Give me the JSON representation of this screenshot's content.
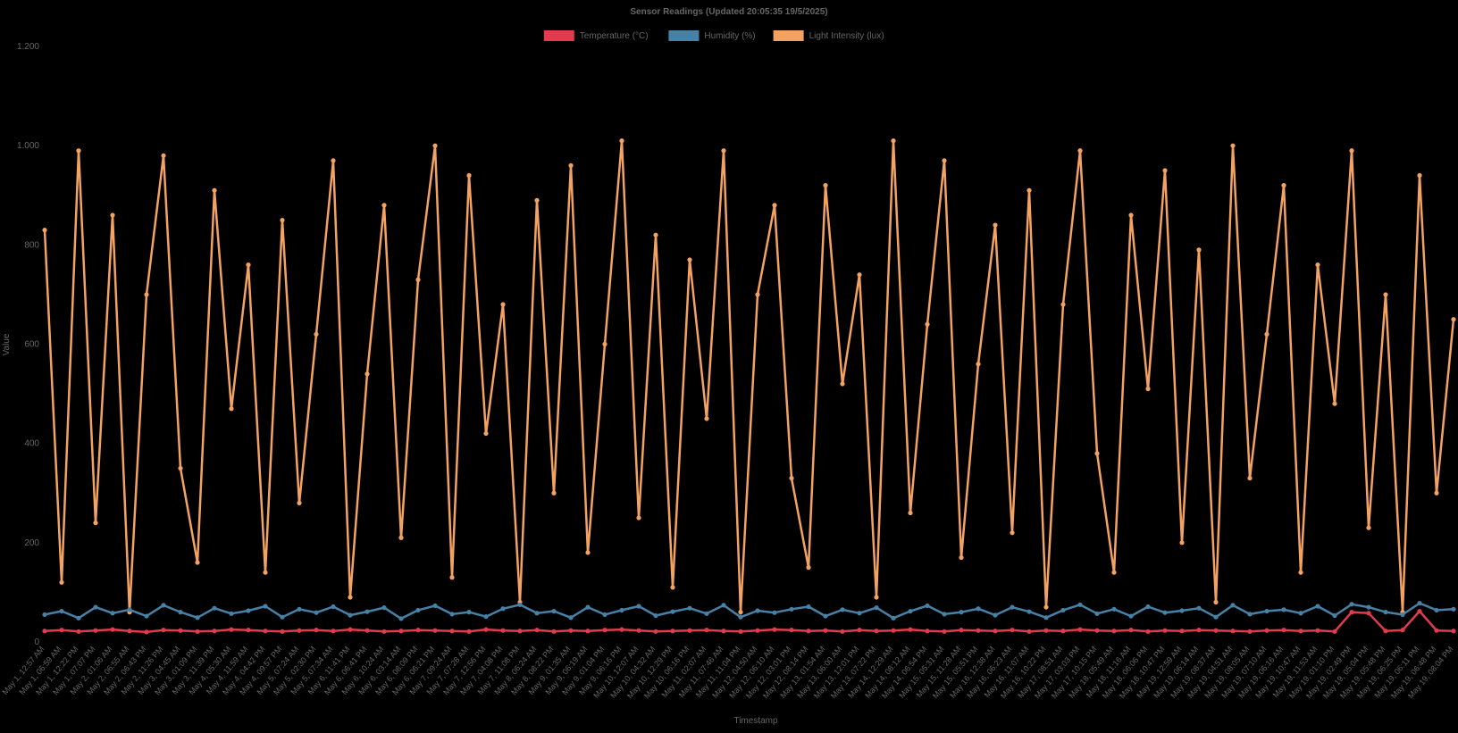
{
  "chart_data": {
    "type": "line",
    "title": "Sensor Readings (Updated 20:05:35 19/5/2025)",
    "xlabel": "Timestamp",
    "ylabel": "Value",
    "ylim": [
      0,
      1200
    ],
    "yticks": [
      0,
      200,
      400,
      600,
      800,
      1000,
      1200
    ],
    "ytick_labels": [
      "0",
      "200",
      "400",
      "600",
      "800",
      "1.000",
      "1.200"
    ],
    "grid": false,
    "legend_position": "top-center",
    "colors": {
      "background": "#000000",
      "text": "#666666"
    },
    "categories": [
      "May 1, 12:57 AM",
      "May 1, 06:59 AM",
      "May 1, 12:22 PM",
      "May 1, 07:07 PM",
      "May 2, 01:06 AM",
      "May 2, 06:55 AM",
      "May 2, 06:43 PM",
      "May 2, 11:26 PM",
      "May 3, 04:45 AM",
      "May 3, 01:09 PM",
      "May 3, 11:39 PM",
      "May 4, 05:30 AM",
      "May 4, 11:59 AM",
      "May 4, 04:42 PM",
      "May 4, 09:57 PM",
      "May 5, 07:24 AM",
      "May 5, 02:30 PM",
      "May 5, 07:34 AM",
      "May 6, 11:41 PM",
      "May 6, 06:41 PM",
      "May 6, 10:24 AM",
      "May 6, 03:14 AM",
      "May 6, 08:09 PM",
      "May 6, 06:21 PM",
      "May 7, 09:24 AM",
      "May 7, 07:28 AM",
      "May 7, 12:56 PM",
      "May 7, 04:08 PM",
      "May 7, 11:08 PM",
      "May 8, 06:24 AM",
      "May 8, 08:22 PM",
      "May 9, 01:35 AM",
      "May 9, 06:19 AM",
      "May 9, 01:04 PM",
      "May 9, 06:16 PM",
      "May 10, 12:07 AM",
      "May 10, 04:32 AM",
      "May 10, 12:29 PM",
      "May 10, 06:16 PM",
      "May 11, 02:07 AM",
      "May 11, 07:46 AM",
      "May 11, 11:04 PM",
      "May 12, 04:50 AM",
      "May 12, 06:10 AM",
      "May 12, 03:01 PM",
      "May 12, 08:14 PM",
      "May 13, 01:54 AM",
      "May 13, 06:00 AM",
      "May 13, 12:01 PM",
      "May 13, 07:22 PM",
      "May 14, 12:29 AM",
      "May 14, 08:12 AM",
      "May 14, 06:54 PM",
      "May 15, 05:31 AM",
      "May 15, 11:28 AM",
      "May 15, 05:51 PM",
      "May 16, 12:38 AM",
      "May 16, 06:23 AM",
      "May 16, 11:07 AM",
      "May 16, 10:22 PM",
      "May 17, 08:51 AM",
      "May 17, 03:03 PM",
      "May 17, 10:15 PM",
      "May 18, 05:49 AM",
      "May 18, 11:16 AM",
      "May 18, 06:06 PM",
      "May 18, 10:47 PM",
      "May 19, 12:59 AM",
      "May 19, 06:14 AM",
      "May 19, 08:37 AM",
      "May 19, 04:51 AM",
      "May 19, 08:05 AM",
      "May 19, 07:10 AM",
      "May 19, 06:16 AM",
      "May 19, 10:47 AM",
      "May 19, 11:53 AM",
      "May 19, 01:10 PM",
      "May 19, 02:49 PM",
      "May 19, 05:04 PM",
      "May 19, 05:48 PM",
      "May 19, 06:25 PM",
      "May 19, 06:11 PM",
      "May 19, 06:48 PM",
      "May 19, 08:04 PM"
    ],
    "series": [
      {
        "name": "Temperature (°C)",
        "color": "#e23a4e",
        "values": [
          22,
          24,
          21,
          23,
          25,
          22,
          20,
          24,
          23,
          21,
          22,
          25,
          24,
          22,
          21,
          23,
          24,
          22,
          25,
          23,
          21,
          22,
          24,
          23,
          22,
          21,
          25,
          23,
          22,
          24,
          21,
          23,
          22,
          24,
          25,
          23,
          21,
          22,
          23,
          24,
          22,
          21,
          23,
          25,
          24,
          22,
          23,
          21,
          24,
          22,
          23,
          25,
          22,
          21,
          24,
          23,
          22,
          24,
          21,
          23,
          22,
          25,
          23,
          22,
          24,
          21,
          23,
          22,
          24,
          23,
          22,
          21,
          23,
          24,
          22,
          23,
          21,
          60,
          58,
          22,
          24,
          62,
          23,
          22
        ]
      },
      {
        "name": "Humidity (%)",
        "color": "#4682a8",
        "values": [
          55,
          62,
          48,
          70,
          58,
          65,
          52,
          74,
          60,
          49,
          68,
          57,
          63,
          72,
          50,
          66,
          59,
          71,
          54,
          61,
          69,
          47,
          64,
          73,
          56,
          60,
          51,
          67,
          75,
          58,
          62,
          49,
          70,
          55,
          64,
          72,
          53,
          61,
          68,
          57,
          74,
          50,
          63,
          59,
          66,
          71,
          52,
          65,
          58,
          69,
          48,
          62,
          73,
          56,
          60,
          67,
          54,
          70,
          61,
          49,
          64,
          75,
          57,
          66,
          52,
          71,
          59,
          63,
          68,
          50,
          74,
          56,
          62,
          65,
          58,
          72,
          53,
          76,
          70,
          60,
          55,
          78,
          64,
          66
        ]
      },
      {
        "name": "Light Intensity (lux)",
        "color": "#f4a261",
        "values": [
          830,
          120,
          990,
          240,
          860,
          60,
          700,
          980,
          350,
          160,
          910,
          470,
          760,
          140,
          850,
          280,
          620,
          970,
          90,
          540,
          880,
          210,
          730,
          1000,
          130,
          940,
          420,
          680,
          80,
          890,
          300,
          960,
          180,
          600,
          1010,
          250,
          820,
          110,
          770,
          450,
          990,
          60,
          700,
          880,
          330,
          150,
          920,
          520,
          740,
          90,
          1010,
          260,
          640,
          970,
          170,
          560,
          840,
          220,
          910,
          70,
          680,
          990,
          380,
          140,
          860,
          510,
          950,
          200,
          790,
          80,
          1000,
          330,
          620,
          920,
          140,
          760,
          480,
          990,
          230,
          700,
          60,
          940,
          300,
          650
        ]
      }
    ]
  }
}
